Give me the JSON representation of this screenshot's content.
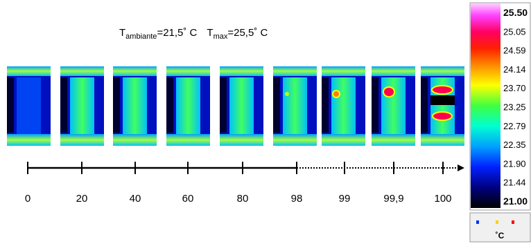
{
  "title": {
    "t1": "T",
    "sub1": "ambiante",
    "eq1": "=21,5˚ C",
    "t2": "T",
    "sub2": "max",
    "eq2": "=25,5˚ C"
  },
  "timeline": {
    "labels": [
      "0",
      "20",
      "40",
      "60",
      "80",
      "98",
      "99",
      "99,9",
      "100"
    ]
  },
  "colorbar": {
    "labels": [
      "25.50",
      "25.05",
      "24.59",
      "24.14",
      "23.70",
      "23.25",
      "22.79",
      "22.35",
      "21.90",
      "21.44",
      "21.00"
    ],
    "unit": "˚C"
  }
}
